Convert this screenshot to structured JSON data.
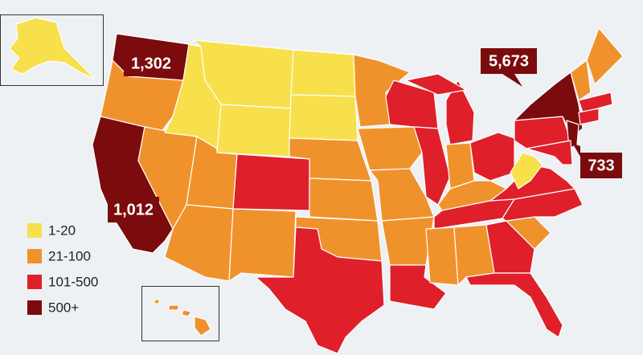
{
  "legend": {
    "items": [
      {
        "label": "1-20",
        "color": "#f7e04b"
      },
      {
        "label": "21-100",
        "color": "#f0922c"
      },
      {
        "label": "101-500",
        "color": "#df1f2a"
      },
      {
        "label": "500+",
        "color": "#7b0b0d"
      }
    ]
  },
  "callouts": [
    "1,302",
    "1,012",
    "5,673",
    "733"
  ]
}
